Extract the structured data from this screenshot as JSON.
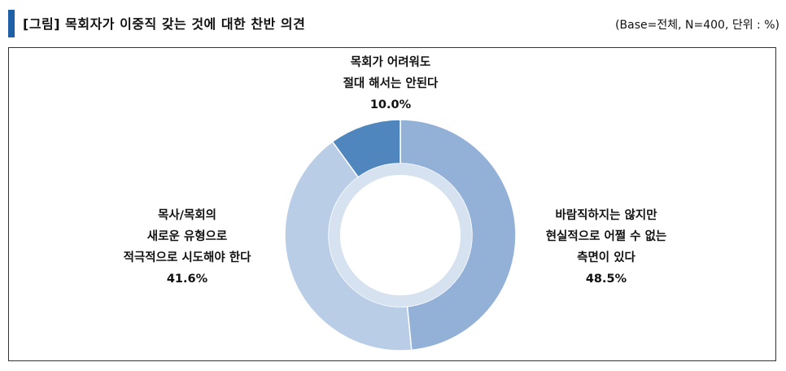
{
  "header": {
    "title": "[그림] 목회자가 이중직 갖는 것에 대한 찬반 의견",
    "base_note": "(Base=전체, N=400, 단위 : %)"
  },
  "chart_data": {
    "type": "pie",
    "variant": "donut",
    "slices": [
      {
        "label_lines": [
          "목회가 어려워도",
          "절대 해서는 안된다"
        ],
        "value": 10.0,
        "value_label": "10.0%",
        "color": "#4f86bd"
      },
      {
        "label_lines": [
          "바람직하지는 않지만",
          "현실적으로 어쩔 수 없는",
          "측면이 있다"
        ],
        "value": 48.5,
        "value_label": "48.5%",
        "color": "#93b1d7"
      },
      {
        "label_lines": [
          "목사/목회의",
          "새로운 유형으로",
          "적극적으로 시도해야 한다"
        ],
        "value": 41.6,
        "value_label": "41.6%",
        "color": "#b9cde6"
      }
    ],
    "inner_ring_color": "#d6e2f0"
  }
}
